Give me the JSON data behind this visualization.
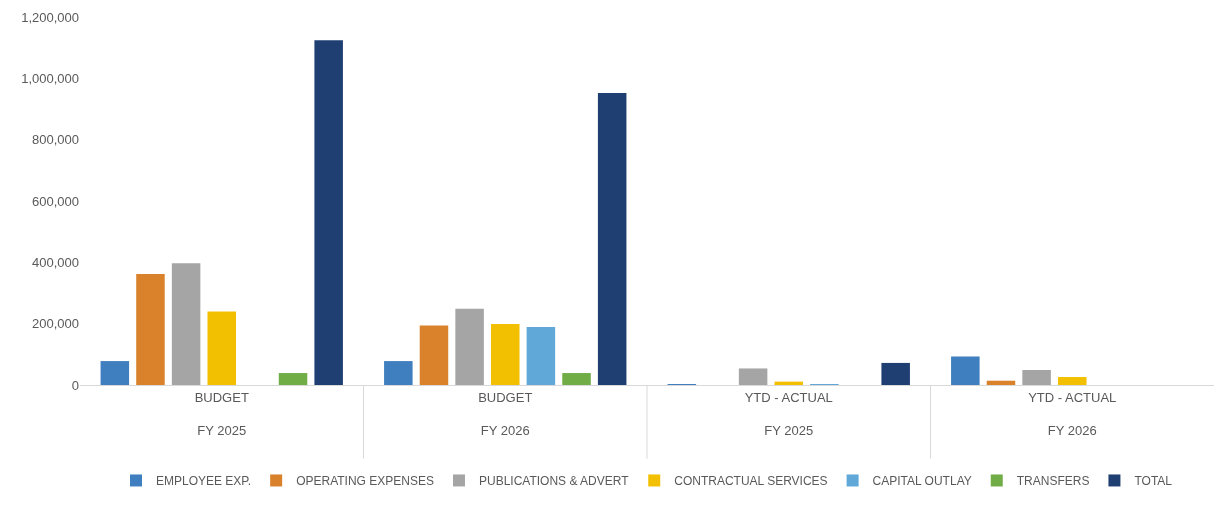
{
  "chart_data": {
    "type": "bar",
    "categories": [
      "BUDGET\nFY 2025",
      "BUDGET\nFY 2026",
      "YTD - ACTUAL\nFY 2025",
      "YTD - ACTUAL\nFY 2026"
    ],
    "series": [
      {
        "name": "EMPLOYEE EXP.",
        "color": "#3f7fbf",
        "values": [
          78000,
          78000,
          1000,
          93000
        ]
      },
      {
        "name": "OPERATING EXPENSES",
        "color": "#d9822b",
        "values": [
          362000,
          194000,
          null,
          14000
        ]
      },
      {
        "name": "PUBLICATIONS & ADVERT",
        "color": "#a5a5a5",
        "values": [
          397000,
          249000,
          54000,
          49000
        ]
      },
      {
        "name": "CONTRACTUAL SERVICES",
        "color": "#f2c000",
        "values": [
          240000,
          199000,
          11000,
          26000
        ]
      },
      {
        "name": "CAPITAL OUTLAY",
        "color": "#5fa8d8",
        "values": [
          null,
          189000,
          1000,
          null
        ]
      },
      {
        "name": "TRANSFERS",
        "color": "#70ad47",
        "values": [
          39000,
          39000,
          null,
          null
        ]
      },
      {
        "name": "TOTAL",
        "color": "#1f3f73",
        "values": [
          1124000,
          952000,
          72000,
          null
        ]
      }
    ],
    "ylim": [
      0,
      1200000
    ],
    "yticks": [
      {
        "value": 0,
        "label": "0"
      },
      {
        "value": 200000,
        "label": "200,000"
      },
      {
        "value": 400000,
        "label": "400,000"
      },
      {
        "value": 600000,
        "label": "600,000"
      },
      {
        "value": 800000,
        "label": "800,000"
      },
      {
        "value": 1000000,
        "label": "1,000,000"
      },
      {
        "value": 1200000,
        "label": "1,200,000"
      }
    ],
    "grid": false,
    "legend": "bottom"
  }
}
